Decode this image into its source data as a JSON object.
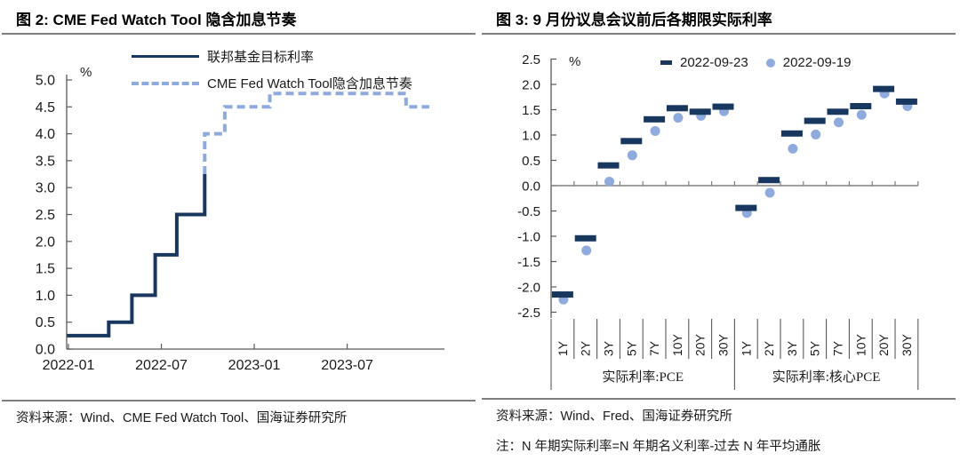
{
  "panels": {
    "left": {
      "title": "图 2:  CME Fed Watch Tool 隐含加息节奏",
      "source": "资料来源：Wind、CME Fed Watch Tool、国海证券研究所"
    },
    "right": {
      "title": "图 3:  9 月份议息会议前后各期限实际利率",
      "source": "资料来源：Wind、Fred、国海证券研究所",
      "note": "注：N 年期实际利率=N 年期名义利率-过去 N 年平均通胀"
    }
  },
  "colors": {
    "navy": "#17375e",
    "light_blue": "#8faadc",
    "axis_dark": "#595959",
    "axis_gray": "#808080",
    "rule": "#7f7f7f"
  },
  "chart_data": [
    {
      "type": "line",
      "title": "CME Fed Watch Tool 隐含加息节奏",
      "unit_label": "%",
      "ylim": [
        0,
        5
      ],
      "yticks": [
        "5.0",
        "4.5",
        "4.0",
        "3.5",
        "3.0",
        "2.5",
        "2.0",
        "1.5",
        "1.0",
        "0.5",
        "0.0"
      ],
      "xticks": [
        {
          "m": 0,
          "label": "2022-01"
        },
        {
          "m": 6,
          "label": "2022-07"
        },
        {
          "m": 12,
          "label": "2023-01"
        },
        {
          "m": 18,
          "label": "2023-07"
        }
      ],
      "legend_position": "top",
      "grid": false,
      "series": [
        {
          "name": "联邦基金目标利率",
          "style": "solid",
          "color_key": "navy",
          "points": [
            [
              -0.1,
              0.25
            ],
            [
              2.6,
              0.25
            ],
            [
              2.6,
              0.5
            ],
            [
              4.1,
              0.5
            ],
            [
              4.1,
              1.0
            ],
            [
              5.6,
              1.0
            ],
            [
              5.6,
              1.75
            ],
            [
              7.0,
              1.75
            ],
            [
              7.0,
              2.5
            ],
            [
              8.8,
              2.5
            ],
            [
              8.8,
              3.25
            ]
          ]
        },
        {
          "name": "CME Fed Watch Tool隐含加息节奏",
          "style": "dashed",
          "color_key": "light_blue",
          "points": [
            [
              8.8,
              3.25
            ],
            [
              8.8,
              4.0
            ],
            [
              10.1,
              4.0
            ],
            [
              10.1,
              4.5
            ],
            [
              13.0,
              4.5
            ],
            [
              13.0,
              4.75
            ],
            [
              21.8,
              4.75
            ],
            [
              21.8,
              4.5
            ],
            [
              23.3,
              4.5
            ]
          ]
        }
      ]
    },
    {
      "type": "scatter",
      "title": "9 月份议息会议前后各期限实际利率",
      "unit_label": "%",
      "ylim": [
        -2.5,
        2.5
      ],
      "yticks": [
        "2.5",
        "2.0",
        "1.5",
        "1.0",
        "0.5",
        "0.0",
        "-0.5",
        "-1.0",
        "-1.5",
        "-2.0",
        "-2.5"
      ],
      "legend_position": "top",
      "grid": false,
      "groups": [
        {
          "label": "实际利率:PCE",
          "categories": [
            "1Y",
            "2Y",
            "3Y",
            "5Y",
            "7Y",
            "10Y",
            "20Y",
            "30Y"
          ]
        },
        {
          "label": "实际利率:核心PCE",
          "categories": [
            "1Y",
            "2Y",
            "3Y",
            "5Y",
            "7Y",
            "10Y",
            "20Y",
            "30Y"
          ]
        }
      ],
      "series": [
        {
          "name": "2022-09-23",
          "marker": "dash",
          "color_key": "navy",
          "values": [
            [
              -2.15,
              -1.04,
              0.4,
              0.88,
              1.31,
              1.53,
              1.46,
              1.56
            ],
            [
              -0.44,
              0.11,
              1.03,
              1.28,
              1.46,
              1.57,
              1.91,
              1.66
            ]
          ]
        },
        {
          "name": "2022-09-19",
          "marker": "dot",
          "color_key": "light_blue",
          "values": [
            [
              -2.25,
              -1.28,
              0.08,
              0.6,
              1.08,
              1.34,
              1.38,
              1.47
            ],
            [
              -0.54,
              -0.14,
              0.73,
              1.01,
              1.25,
              1.4,
              1.82,
              1.57
            ]
          ]
        }
      ]
    }
  ]
}
